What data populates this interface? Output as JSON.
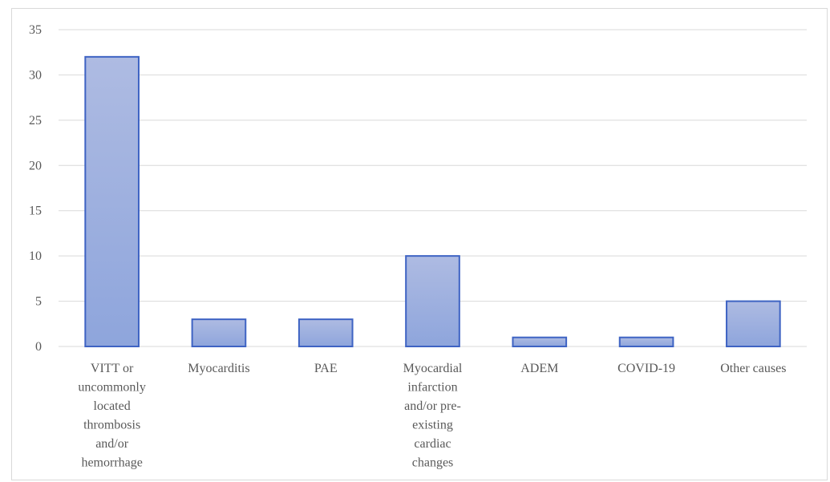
{
  "chart_data": {
    "type": "bar",
    "title": "",
    "xlabel": "",
    "ylabel": "",
    "ylim": [
      0,
      35
    ],
    "yticks": [
      0,
      5,
      10,
      15,
      20,
      25,
      30,
      35
    ],
    "grid": true,
    "legend": "none",
    "categories": [
      "VITT or uncommonly located thrombosis and/or hemorrhage",
      "Myocarditis",
      "PAE",
      "Myocardial infarction and/or pre-existing cardiac changes",
      "ADEM",
      "COVID-19",
      "Other causes"
    ],
    "category_lines": [
      [
        "VITT or",
        "uncommonly",
        "located",
        "thrombosis",
        "and/or",
        "hemorrhage"
      ],
      [
        "Myocarditis"
      ],
      [
        "PAE"
      ],
      [
        "Myocardial",
        "infarction",
        "and/or pre-",
        "existing",
        "cardiac",
        "changes"
      ],
      [
        "ADEM"
      ],
      [
        "COVID-19"
      ],
      [
        "Other causes"
      ]
    ],
    "values": [
      32,
      3,
      3,
      10,
      1,
      1,
      5
    ],
    "colors": {
      "bar_top": "#aebbe2",
      "bar_bottom": "#8ea5dc",
      "bar_edge": "#3e63c3",
      "grid": "#d9d9d9",
      "text": "#595959"
    }
  }
}
